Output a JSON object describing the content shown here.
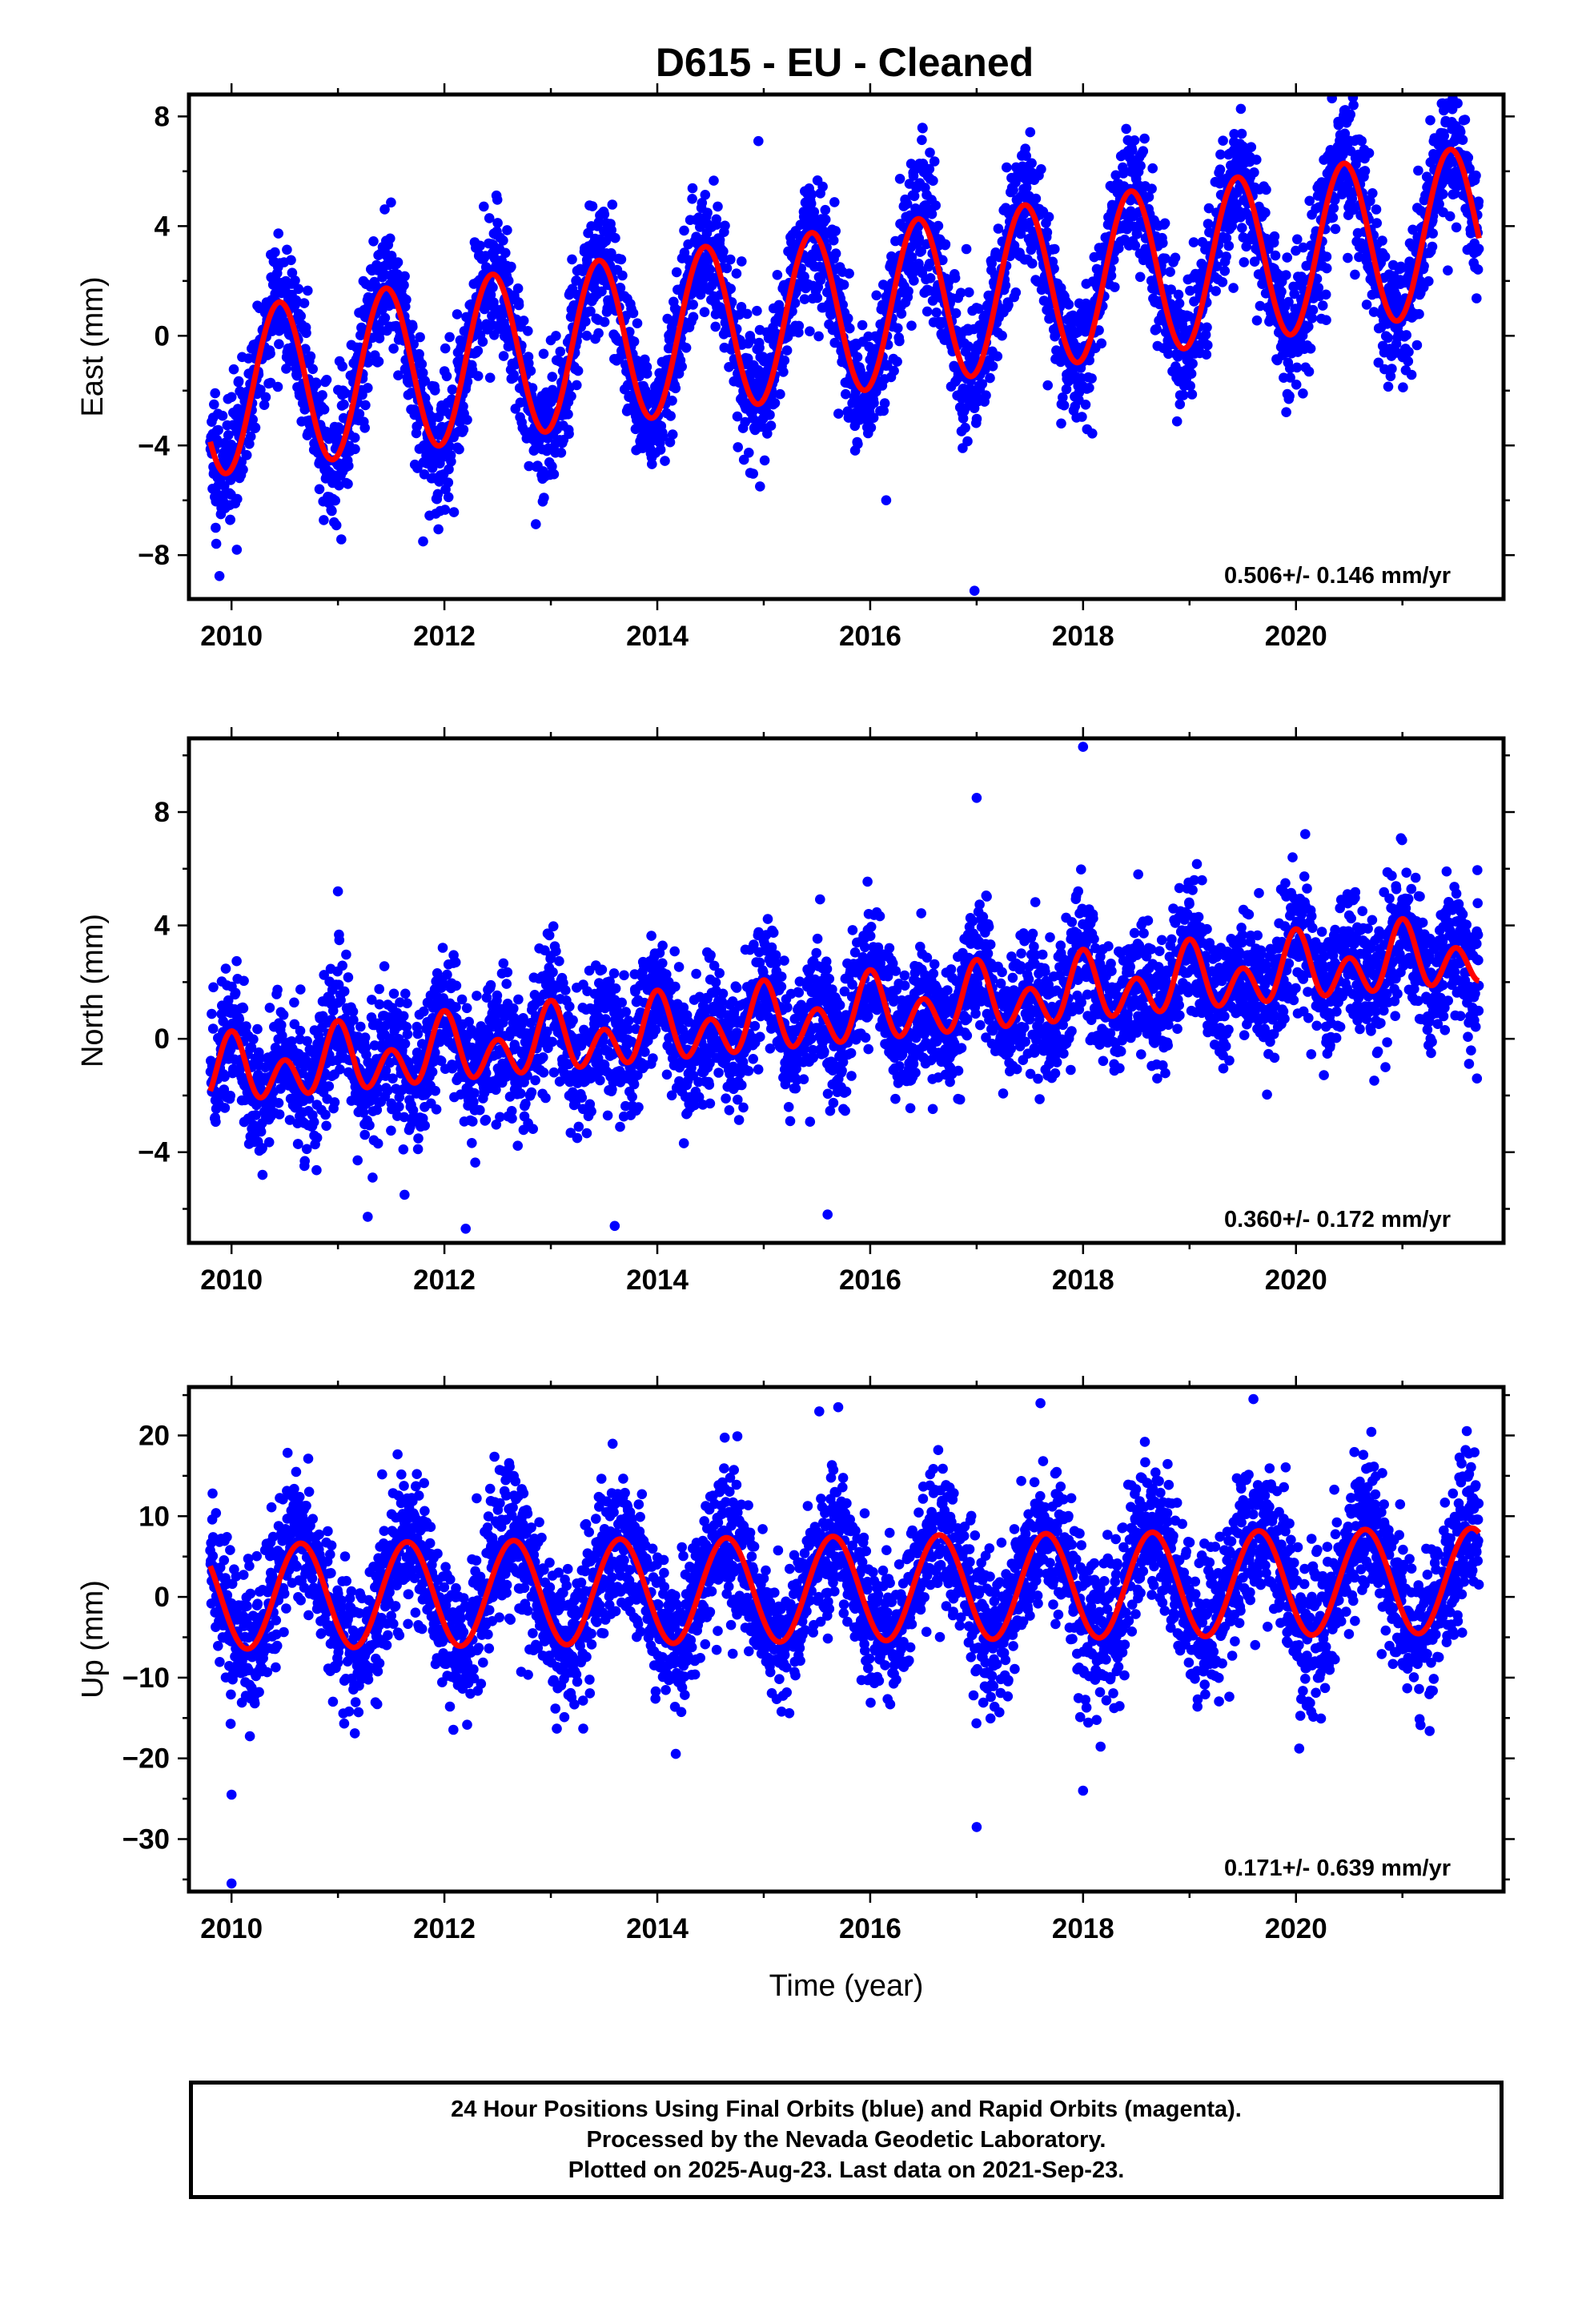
{
  "title": "D615  - EU - Cleaned",
  "xlabel": "Time (year)",
  "footer": {
    "line1": "24 Hour Positions Using Final Orbits (blue) and Rapid Orbits (magenta).",
    "line2": "Processed by the Nevada Geodetic Laboratory.",
    "line3": "Plotted on 2025-Aug-23. Last data on 2021-Sep-23."
  },
  "colors": {
    "points": "#0000ff",
    "model": "#ff0000",
    "frame": "#000000"
  },
  "chart_data": [
    {
      "type": "scatter",
      "name": "east",
      "ylabel": "East (mm)",
      "rate_label": "0.506+/- 0.146 mm/yr",
      "xlim": [
        2009.6,
        2021.95
      ],
      "ylim": [
        -9.6,
        8.8
      ],
      "xticks": [
        2010,
        2012,
        2014,
        2016,
        2018,
        2020
      ],
      "yticks": [
        -8,
        -4,
        0,
        4,
        8
      ],
      "model": {
        "start": 2009.8,
        "end": 2021.72,
        "offset": -2.1,
        "rate": 0.506,
        "ann_amp": 3.0,
        "ann_peak": 0.45,
        "semi_amp": 0.0,
        "semi_peak": 0.0
      },
      "noise": 1.2,
      "outliers": [
        [
          2014.95,
          7.1
        ],
        [
          2016.98,
          -9.3
        ],
        [
          2010.05,
          -7.8
        ],
        [
          2016.15,
          -6.0
        ],
        [
          2011.8,
          -7.5
        ]
      ]
    },
    {
      "type": "scatter",
      "name": "north",
      "ylabel": "North (mm)",
      "rate_label": "0.360+/- 0.172 mm/yr",
      "xlim": [
        2009.6,
        2021.95
      ],
      "ylim": [
        -7.2,
        10.6
      ],
      "xticks": [
        2010,
        2012,
        2014,
        2016,
        2018,
        2020
      ],
      "yticks": [
        -4,
        0,
        4,
        8
      ],
      "model": {
        "start": 2009.8,
        "end": 2021.72,
        "offset": -1.3,
        "rate": 0.36,
        "ann_amp": 0.6,
        "ann_peak": 0.0,
        "semi_amp": 0.9,
        "semi_peak": 0.0
      },
      "noise": 1.15,
      "outliers": [
        [
          2018.0,
          10.3
        ],
        [
          2017.0,
          8.5
        ],
        [
          2012.2,
          -6.7
        ],
        [
          2015.6,
          -6.2
        ],
        [
          2021.7,
          -1.4
        ],
        [
          2013.6,
          -6.6
        ],
        [
          2011.0,
          5.2
        ]
      ]
    },
    {
      "type": "scatter",
      "name": "up",
      "ylabel": "Up (mm)",
      "rate_label": "0.171+/- 0.639 mm/yr",
      "xlim": [
        2009.6,
        2021.95
      ],
      "ylim": [
        -36.5,
        26.0
      ],
      "xticks": [
        2010,
        2012,
        2014,
        2016,
        2018,
        2020
      ],
      "yticks": [
        -30,
        -20,
        -10,
        0,
        10,
        20
      ],
      "model": {
        "start": 2009.8,
        "end": 2021.72,
        "offset": 0.0,
        "rate": 0.171,
        "ann_amp": 6.5,
        "ann_peak": 0.65,
        "semi_amp": 0.0,
        "semi_peak": 0.0
      },
      "noise": 4.5,
      "outliers": [
        [
          2010.0,
          -35.5
        ],
        [
          2010.0,
          -24.5
        ],
        [
          2017.0,
          -28.5
        ],
        [
          2018.0,
          -24.0
        ],
        [
          2015.7,
          23.5
        ],
        [
          2017.6,
          24.0
        ],
        [
          2019.6,
          24.5
        ]
      ]
    }
  ]
}
